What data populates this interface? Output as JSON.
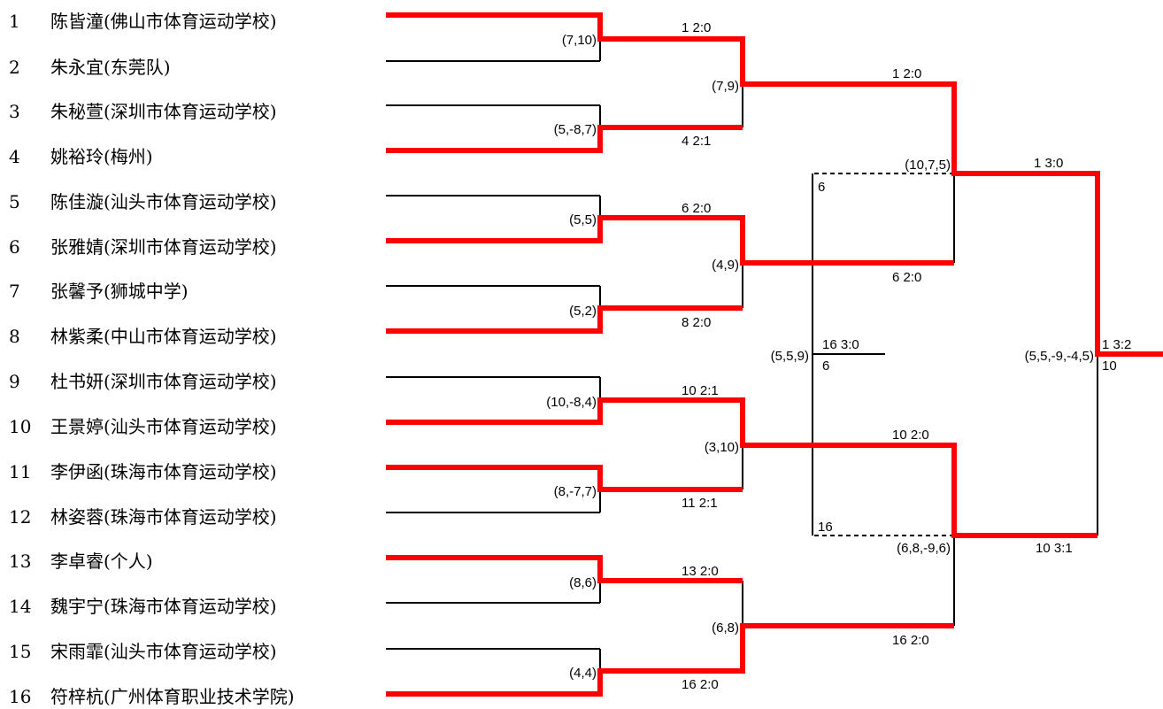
{
  "players": [
    {
      "seed": "1",
      "name": "陈皆潼(佛山市体育运动学校)"
    },
    {
      "seed": "2",
      "name": "朱永宜(东莞队)"
    },
    {
      "seed": "3",
      "name": "朱秘萱(深圳市体育运动学校)"
    },
    {
      "seed": "4",
      "name": "姚裕玲(梅州)"
    },
    {
      "seed": "5",
      "name": "陈佳漩(汕头市体育运动学校)"
    },
    {
      "seed": "6",
      "name": "张雅婧(深圳市体育运动学校)"
    },
    {
      "seed": "7",
      "name": "张馨予(狮城中学)"
    },
    {
      "seed": "8",
      "name": "林紫柔(中山市体育运动学校)"
    },
    {
      "seed": "9",
      "name": "杜书妍(深圳市体育运动学校)"
    },
    {
      "seed": "10",
      "name": "王景婷(汕头市体育运动学校)"
    },
    {
      "seed": "11",
      "name": "李伊函(珠海市体育运动学校)"
    },
    {
      "seed": "12",
      "name": "林姿蓉(珠海市体育运动学校)"
    },
    {
      "seed": "13",
      "name": "李卓睿(个人)"
    },
    {
      "seed": "14",
      "name": "魏宇宁(珠海市体育运动学校)"
    },
    {
      "seed": "15",
      "name": "宋雨霏(汕头市体育运动学校)"
    },
    {
      "seed": "16",
      "name": "符梓杭(广州体育职业技术学院)"
    }
  ],
  "round1": [
    {
      "scores": "(7,10)",
      "result": "1  2:0"
    },
    {
      "scores": "(5,-8,7)",
      "result": "4  2:1"
    },
    {
      "scores": "(5,5)",
      "result": "6  2:0"
    },
    {
      "scores": "(5,2)",
      "result": "8  2:0"
    },
    {
      "scores": "(10,-8,4)",
      "result": "10  2:1"
    },
    {
      "scores": "(8,-7,7)",
      "result": "11  2:1"
    },
    {
      "scores": "(8,6)",
      "result": "13  2:0"
    },
    {
      "scores": "(4,4)",
      "result": "16  2:0"
    }
  ],
  "round2": [
    {
      "scores": "(7,9)",
      "result": "1  2:0"
    },
    {
      "scores": "(4,9)",
      "result": "6  2:0"
    },
    {
      "scores": "(3,10)",
      "result": "10  2:0"
    },
    {
      "scores": "(6,8)",
      "result": "16  2:0"
    }
  ],
  "semis": [
    {
      "scores": "(10,7,5)",
      "result": "1  3:0"
    },
    {
      "scores": "(6,8,-9,6)",
      "result": "10  3:1"
    }
  ],
  "final": {
    "scores": "(5,5,-9,-4,5)",
    "result": "1  3:2",
    "runner_up": "10"
  },
  "third_place": {
    "scores": "(5,5,9)",
    "result": "16  3:0",
    "loser": "6",
    "top_entry": "6",
    "bottom_entry": "16"
  },
  "colors": {
    "winner_path": "#ff0000",
    "line": "#000000"
  }
}
